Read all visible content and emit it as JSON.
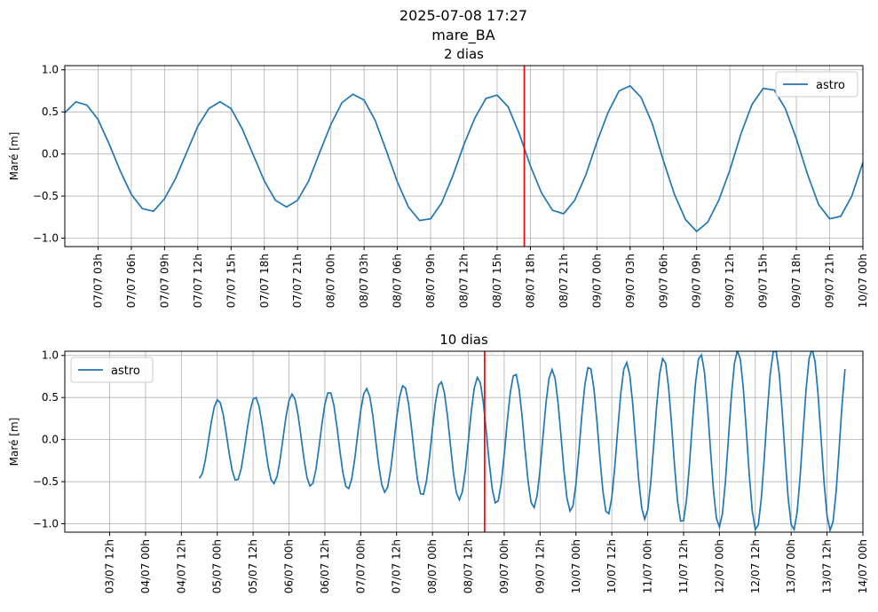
{
  "header": {
    "line1": "2025-07-08 17:27",
    "line2": "mare_BA"
  },
  "colors": {
    "series": "#1f77b4",
    "now_line": "#ff0000",
    "grid": "#b0b0b0",
    "axes": "#000000"
  },
  "chart_data": [
    {
      "type": "line",
      "title": "2 dias",
      "xlabel": "",
      "ylabel": "Maré [m]",
      "x_unit": "hours since 07/07 00h",
      "xlim": [
        0,
        72
      ],
      "ylim": [
        -1.1,
        1.05
      ],
      "grid": true,
      "legend": "top-right",
      "yticks": [
        1.0,
        0.5,
        0.0,
        -0.5,
        -1.0
      ],
      "ytick_labels": [
        "1.0",
        "0.5",
        "0.0",
        "−0.5",
        "−1.0"
      ],
      "xticks": [
        {
          "x": 3,
          "label": "07/07 03h"
        },
        {
          "x": 6,
          "label": "07/07 06h"
        },
        {
          "x": 9,
          "label": "07/07 09h"
        },
        {
          "x": 12,
          "label": "07/07 12h"
        },
        {
          "x": 15,
          "label": "07/07 15h"
        },
        {
          "x": 18,
          "label": "07/07 18h"
        },
        {
          "x": 21,
          "label": "07/07 21h"
        },
        {
          "x": 24,
          "label": "08/07 00h"
        },
        {
          "x": 27,
          "label": "08/07 03h"
        },
        {
          "x": 30,
          "label": "08/07 06h"
        },
        {
          "x": 33,
          "label": "08/07 09h"
        },
        {
          "x": 36,
          "label": "08/07 12h"
        },
        {
          "x": 39,
          "label": "08/07 15h"
        },
        {
          "x": 42,
          "label": "08/07 18h"
        },
        {
          "x": 45,
          "label": "08/07 21h"
        },
        {
          "x": 48,
          "label": "09/07 00h"
        },
        {
          "x": 51,
          "label": "09/07 03h"
        },
        {
          "x": 54,
          "label": "09/07 06h"
        },
        {
          "x": 57,
          "label": "09/07 09h"
        },
        {
          "x": 60,
          "label": "09/07 12h"
        },
        {
          "x": 63,
          "label": "09/07 15h"
        },
        {
          "x": 66,
          "label": "09/07 18h"
        },
        {
          "x": 69,
          "label": "09/07 21h"
        },
        {
          "x": 72,
          "label": "10/07 00h"
        }
      ],
      "now_x": 41.45,
      "series": [
        {
          "name": "astro",
          "step": 1,
          "x0": 0,
          "values": [
            0.49,
            0.62,
            0.58,
            0.41,
            0.12,
            -0.2,
            -0.48,
            -0.65,
            -0.68,
            -0.53,
            -0.29,
            0.02,
            0.33,
            0.54,
            0.62,
            0.54,
            0.3,
            -0.01,
            -0.32,
            -0.55,
            -0.63,
            -0.55,
            -0.32,
            0.02,
            0.35,
            0.61,
            0.71,
            0.64,
            0.4,
            0.04,
            -0.33,
            -0.63,
            -0.79,
            -0.77,
            -0.58,
            -0.26,
            0.11,
            0.43,
            0.66,
            0.7,
            0.56,
            0.24,
            -0.14,
            -0.46,
            -0.67,
            -0.71,
            -0.55,
            -0.25,
            0.14,
            0.49,
            0.75,
            0.81,
            0.67,
            0.36,
            -0.08,
            -0.48,
            -0.78,
            -0.92,
            -0.81,
            -0.55,
            -0.19,
            0.24,
            0.59,
            0.78,
            0.76,
            0.54,
            0.18,
            -0.24,
            -0.6,
            -0.77,
            -0.74,
            -0.5,
            -0.1
          ]
        }
      ]
    },
    {
      "type": "line",
      "title": "10 dias",
      "xlabel": "",
      "ylabel": "Maré [m]",
      "x_unit": "hours since 03/07 00h",
      "xlim": [
        -3,
        264
      ],
      "ylim": [
        -1.1,
        1.05
      ],
      "grid": true,
      "legend": "top-left",
      "yticks": [
        1.0,
        0.5,
        0.0,
        -0.5,
        -1.0
      ],
      "ytick_labels": [
        "1.0",
        "0.5",
        "0.0",
        "−0.5",
        "−1.0"
      ],
      "xticks": [
        {
          "x": 12,
          "label": "03/07 12h"
        },
        {
          "x": 24,
          "label": "04/07 00h"
        },
        {
          "x": 36,
          "label": "04/07 12h"
        },
        {
          "x": 48,
          "label": "05/07 00h"
        },
        {
          "x": 60,
          "label": "05/07 12h"
        },
        {
          "x": 72,
          "label": "06/07 00h"
        },
        {
          "x": 84,
          "label": "06/07 12h"
        },
        {
          "x": 96,
          "label": "07/07 00h"
        },
        {
          "x": 108,
          "label": "07/07 12h"
        },
        {
          "x": 120,
          "label": "08/07 00h"
        },
        {
          "x": 132,
          "label": "08/07 12h"
        },
        {
          "x": 144,
          "label": "09/07 00h"
        },
        {
          "x": 156,
          "label": "09/07 12h"
        },
        {
          "x": 168,
          "label": "10/07 00h"
        },
        {
          "x": 180,
          "label": "10/07 12h"
        },
        {
          "x": 192,
          "label": "11/07 00h"
        },
        {
          "x": 204,
          "label": "11/07 12h"
        },
        {
          "x": 216,
          "label": "12/07 00h"
        },
        {
          "x": 228,
          "label": "12/07 12h"
        },
        {
          "x": 240,
          "label": "13/07 00h"
        },
        {
          "x": 252,
          "label": "13/07 12h"
        },
        {
          "x": 264,
          "label": "14/07 00h"
        }
      ],
      "now_x": 137.45,
      "series": [
        {
          "name": "astro",
          "x_start": 42,
          "x_end": 258,
          "step": 1,
          "envelope": [
            {
              "x": 42,
              "amp": 0.46
            },
            {
              "x": 96,
              "amp": 0.6
            },
            {
              "x": 120,
              "amp": 0.68
            },
            {
              "x": 150,
              "amp": 0.8
            },
            {
              "x": 180,
              "amp": 0.9
            },
            {
              "x": 204,
              "amp": 1.0
            },
            {
              "x": 228,
              "amp": 1.08
            },
            {
              "x": 252,
              "amp": 1.08
            }
          ],
          "period_h": 12.42,
          "phase_ref_x": 42,
          "phase_ref_value": -0.46,
          "note_on_values": "sampled hourly along the envelope"
        }
      ]
    }
  ]
}
